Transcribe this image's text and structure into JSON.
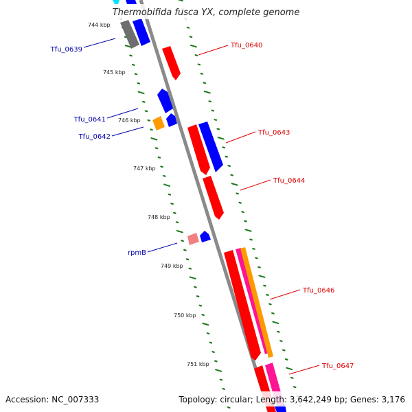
{
  "title": "Thermobifida fusca YX, complete genome",
  "footer": {
    "accession": "Accession: NC_007333",
    "summary": "Topology: circular; Length: 3,642,249 bp; Genes: 3,176"
  },
  "colors": {
    "backbone": "#808080",
    "tick": "#1a7a1a",
    "label_plus": "#dd0000",
    "label_minus": "#0000aa",
    "red": "#ff0000",
    "blue": "#0000ff",
    "gray": "#707070",
    "cyan": "#00e5ff",
    "orange": "#ff9900",
    "pink": "#f08080",
    "magenta": "#ff1493"
  },
  "kbp_labels": [
    "744 kbp",
    "745 kbp",
    "746 kbp",
    "747 kbp",
    "748 kbp",
    "749 kbp",
    "750 kbp",
    "751 kbp"
  ],
  "gene_labels": {
    "tfu_0639": "Tfu_0639",
    "tfu_0640": "Tfu_0640",
    "tfu_0641": "Tfu_0641",
    "tfu_0642": "Tfu_0642",
    "tfu_0643": "Tfu_0643",
    "tfu_0644": "Tfu_0644",
    "rpmb": "rpmB",
    "tfu_0646": "Tfu_0646",
    "tfu_0647": "Tfu_0647"
  }
}
